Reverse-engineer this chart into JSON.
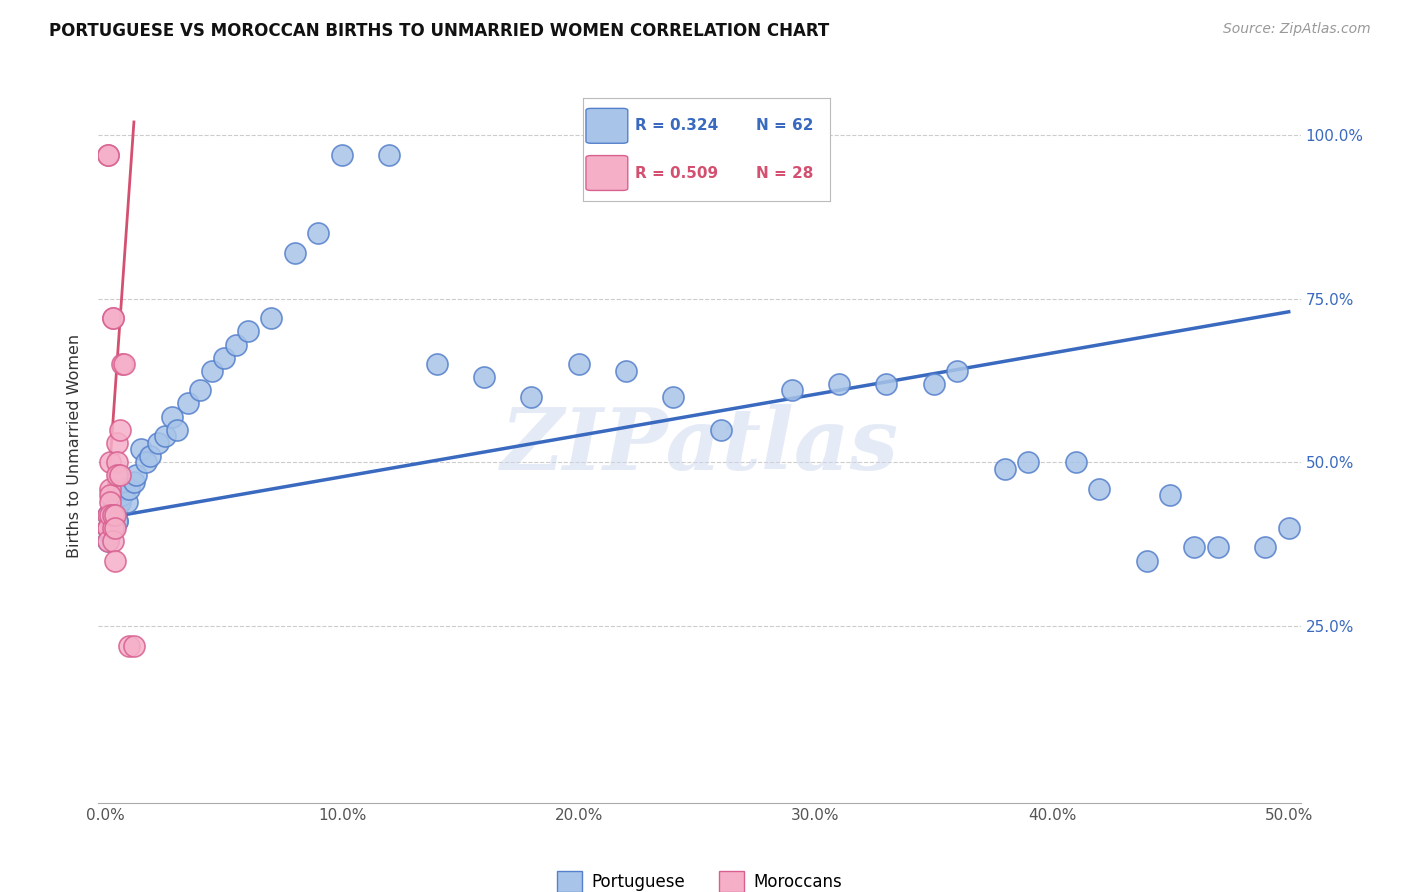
{
  "title": "PORTUGUESE VS MOROCCAN BIRTHS TO UNMARRIED WOMEN CORRELATION CHART",
  "source": "Source: ZipAtlas.com",
  "ylabel_label": "Births to Unmarried Women",
  "xlim": [
    -0.003,
    0.505
  ],
  "ylim": [
    -0.02,
    1.07
  ],
  "xtick_vals": [
    0.0,
    0.1,
    0.2,
    0.3,
    0.4,
    0.5
  ],
  "xtick_labels": [
    "0.0%",
    "10.0%",
    "20.0%",
    "30.0%",
    "40.0%",
    "50.0%"
  ],
  "ytick_vals": [
    0.25,
    0.5,
    0.75,
    1.0
  ],
  "ytick_labels": [
    "25.0%",
    "50.0%",
    "75.0%",
    "100.0%"
  ],
  "port_color_face": "#a8c4e8",
  "port_color_edge": "#5580cc",
  "mor_color_face": "#f5b0c8",
  "mor_color_edge": "#d86090",
  "blue_line": "#3a6abf",
  "pink_line": "#d45070",
  "legend_blue_r": "R = 0.324",
  "legend_blue_n": "N = 62",
  "legend_pink_r": "R = 0.509",
  "legend_pink_n": "N = 28",
  "watermark": "ZIPatlas",
  "port_x": [
    0.001,
    0.001,
    0.001,
    0.002,
    0.002,
    0.002,
    0.002,
    0.003,
    0.003,
    0.003,
    0.004,
    0.004,
    0.005,
    0.005,
    0.005,
    0.006,
    0.007,
    0.008,
    0.009,
    0.01,
    0.012,
    0.013,
    0.015,
    0.017,
    0.019,
    0.022,
    0.025,
    0.028,
    0.03,
    0.035,
    0.04,
    0.045,
    0.05,
    0.055,
    0.06,
    0.07,
    0.08,
    0.09,
    0.1,
    0.12,
    0.14,
    0.16,
    0.18,
    0.2,
    0.22,
    0.24,
    0.26,
    0.29,
    0.31,
    0.33,
    0.35,
    0.36,
    0.38,
    0.39,
    0.41,
    0.42,
    0.44,
    0.45,
    0.46,
    0.47,
    0.49,
    0.5
  ],
  "port_y": [
    0.4,
    0.38,
    0.42,
    0.42,
    0.39,
    0.41,
    0.4,
    0.41,
    0.43,
    0.4,
    0.42,
    0.42,
    0.41,
    0.43,
    0.41,
    0.44,
    0.45,
    0.46,
    0.44,
    0.46,
    0.47,
    0.48,
    0.52,
    0.5,
    0.51,
    0.53,
    0.54,
    0.57,
    0.55,
    0.59,
    0.61,
    0.64,
    0.66,
    0.68,
    0.7,
    0.72,
    0.82,
    0.85,
    0.97,
    0.97,
    0.65,
    0.63,
    0.6,
    0.65,
    0.64,
    0.6,
    0.55,
    0.61,
    0.62,
    0.62,
    0.62,
    0.64,
    0.49,
    0.5,
    0.5,
    0.46,
    0.35,
    0.45,
    0.37,
    0.37,
    0.37,
    0.4
  ],
  "mor_x": [
    0.001,
    0.001,
    0.001,
    0.001,
    0.001,
    0.001,
    0.002,
    0.002,
    0.002,
    0.002,
    0.002,
    0.003,
    0.003,
    0.003,
    0.003,
    0.003,
    0.004,
    0.004,
    0.004,
    0.005,
    0.005,
    0.005,
    0.006,
    0.006,
    0.007,
    0.008,
    0.01,
    0.012
  ],
  "mor_y": [
    0.97,
    0.97,
    0.4,
    0.42,
    0.4,
    0.38,
    0.46,
    0.5,
    0.45,
    0.44,
    0.42,
    0.72,
    0.72,
    0.4,
    0.42,
    0.38,
    0.42,
    0.4,
    0.35,
    0.53,
    0.5,
    0.48,
    0.55,
    0.48,
    0.65,
    0.65,
    0.22,
    0.22
  ],
  "blue_line_x": [
    0.0,
    0.5
  ],
  "blue_line_y": [
    0.415,
    0.73
  ],
  "pink_line_x": [
    0.0,
    0.012
  ],
  "pink_line_y": [
    0.4,
    1.02
  ]
}
